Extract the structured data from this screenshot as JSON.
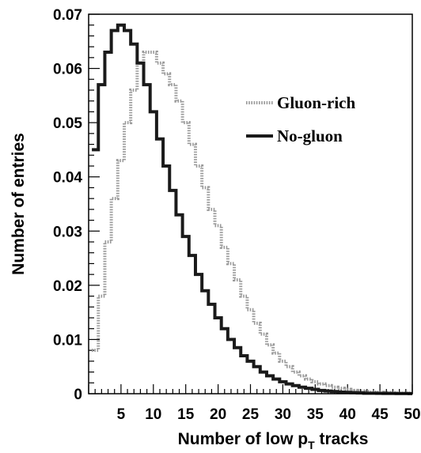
{
  "chart_data": {
    "type": "line",
    "title": "",
    "xlabel": "Number of low p",
    "xlabel_sub": "T",
    "xlabel_suffix": " tracks",
    "ylabel": "Number of entries",
    "xlim": [
      0,
      50
    ],
    "ylim": [
      0,
      0.07
    ],
    "x_ticks": [
      "5",
      "10",
      "15",
      "20",
      "25",
      "30",
      "35",
      "40",
      "45",
      "50"
    ],
    "y_ticks": [
      "0",
      "0.01",
      "0.02",
      "0.03",
      "0.04",
      "0.05",
      "0.06",
      "0.07"
    ],
    "grid": false,
    "legend_position": "top-right",
    "series": [
      {
        "name": "Gluon-rich",
        "style": "dotted",
        "color": "#9a9a9a",
        "x": [
          1,
          2,
          3,
          4,
          5,
          6,
          7,
          8,
          9,
          10,
          11,
          12,
          13,
          14,
          15,
          16,
          17,
          18,
          19,
          20,
          21,
          22,
          23,
          24,
          25,
          26,
          27,
          28,
          29,
          30,
          31,
          32,
          33,
          34,
          35,
          36,
          37,
          38,
          39,
          40,
          41,
          42,
          43,
          44,
          45,
          46,
          47,
          48,
          49,
          50
        ],
        "y": [
          0.008,
          0.018,
          0.028,
          0.036,
          0.043,
          0.05,
          0.056,
          0.061,
          0.063,
          0.063,
          0.061,
          0.059,
          0.057,
          0.054,
          0.05,
          0.046,
          0.042,
          0.038,
          0.034,
          0.031,
          0.027,
          0.024,
          0.021,
          0.018,
          0.0155,
          0.013,
          0.011,
          0.009,
          0.0075,
          0.006,
          0.005,
          0.004,
          0.0033,
          0.0027,
          0.0022,
          0.0018,
          0.0015,
          0.0012,
          0.001,
          0.0008,
          0.0006,
          0.0005,
          0.0004,
          0.0003,
          0.00025,
          0.0002,
          0.00015,
          0.0001,
          0.0001,
          0.0001
        ]
      },
      {
        "name": "No-gluon",
        "style": "solid",
        "color": "#1a1a1a",
        "x": [
          1,
          2,
          3,
          4,
          5,
          6,
          7,
          8,
          9,
          10,
          11,
          12,
          13,
          14,
          15,
          16,
          17,
          18,
          19,
          20,
          21,
          22,
          23,
          24,
          25,
          26,
          27,
          28,
          29,
          30,
          31,
          32,
          33,
          34,
          35,
          36,
          37,
          38,
          39,
          40,
          41,
          42,
          43,
          44,
          45,
          46,
          47,
          48,
          49,
          50
        ],
        "y": [
          0.045,
          0.057,
          0.063,
          0.067,
          0.068,
          0.067,
          0.0645,
          0.061,
          0.057,
          0.052,
          0.047,
          0.042,
          0.0375,
          0.033,
          0.029,
          0.0255,
          0.022,
          0.019,
          0.0165,
          0.014,
          0.012,
          0.01,
          0.0085,
          0.007,
          0.006,
          0.005,
          0.004,
          0.0033,
          0.0027,
          0.0022,
          0.0018,
          0.0015,
          0.0012,
          0.001,
          0.0008,
          0.0006,
          0.0005,
          0.0004,
          0.0003,
          0.00025,
          0.0002,
          0.00015,
          0.0001,
          0.0001,
          8e-05,
          6e-05,
          5e-05,
          4e-05,
          3e-05,
          2e-05
        ]
      }
    ]
  }
}
